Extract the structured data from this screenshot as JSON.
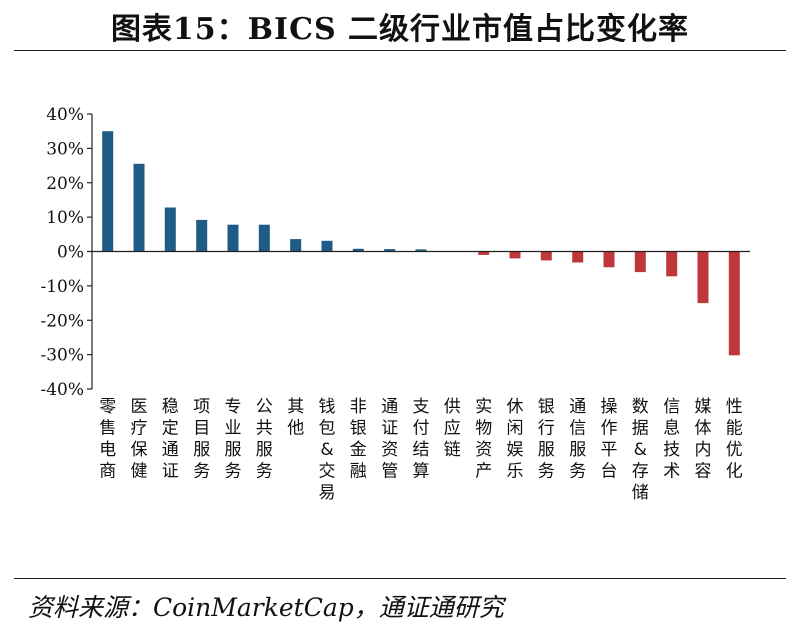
{
  "title": "图表15：BICS 二级行业市值占比变化率",
  "source": "资料来源：CoinMarketCap，通证通研究",
  "colors": {
    "positive": "#1f5b86",
    "negative": "#c0373a",
    "axis": "#222222"
  },
  "chart_data": {
    "type": "bar",
    "title": "图表15：BICS 二级行业市值占比变化率",
    "xlabel": "",
    "ylabel": "",
    "ylim": [
      -40,
      40
    ],
    "yticks": [
      40,
      30,
      20,
      10,
      0,
      -10,
      -20,
      -30,
      -40
    ],
    "ytick_labels": [
      "40%",
      "30%",
      "20%",
      "10%",
      "0%",
      "-10%",
      "-20%",
      "-30%",
      "-40%"
    ],
    "grid": false,
    "legend": "none",
    "categories": [
      "零售电商",
      "医疗保健",
      "稳定通证",
      "项目服务",
      "专业服务",
      "公共服务",
      "其他",
      "钱包&交易",
      "非银金融",
      "通证资管",
      "支付结算",
      "供应链",
      "实物资产",
      "休闲娱乐",
      "银行服务",
      "通信服务",
      "操作平台",
      "数据&存储",
      "信息技术",
      "媒体内容",
      "性能优化"
    ],
    "values": [
      35.0,
      25.5,
      12.8,
      9.2,
      7.8,
      7.8,
      3.6,
      3.1,
      0.8,
      0.7,
      0.6,
      0.0,
      -1.0,
      -2.0,
      -2.6,
      -3.2,
      -4.6,
      -6.0,
      -7.2,
      -15.0,
      -30.2
    ]
  }
}
